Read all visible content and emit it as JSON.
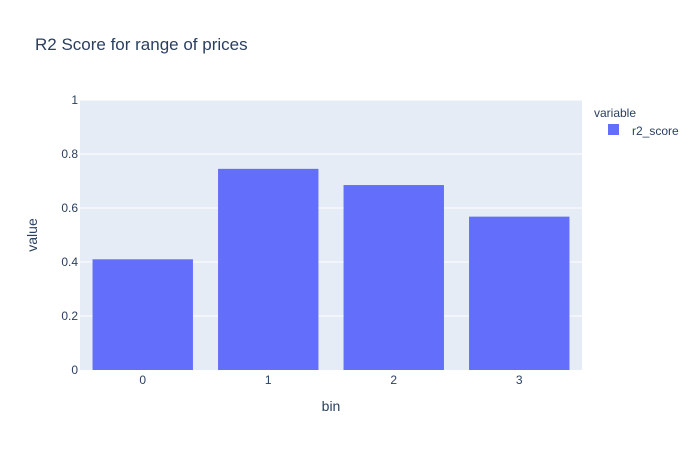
{
  "chart_data": {
    "type": "bar",
    "title": "R2 Score for range of prices",
    "xlabel": "bin",
    "ylabel": "value",
    "categories": [
      "0",
      "1",
      "2",
      "3"
    ],
    "series": [
      {
        "name": "r2_score",
        "values": [
          0.41,
          0.745,
          0.685,
          0.568
        ],
        "color": "#636efa"
      }
    ],
    "ylim": [
      0,
      1
    ],
    "y_ticks": [
      0,
      0.2,
      0.4,
      0.6,
      0.8,
      1
    ],
    "y_tick_labels": [
      "0",
      "0.2",
      "0.4",
      "0.6",
      "0.8",
      "1"
    ],
    "grid": true,
    "legend": {
      "title": "variable",
      "position": "right"
    },
    "colors": {
      "plot_background": "#e5ecf6",
      "grid": "#ffffff",
      "text": "#2a3f5f"
    }
  }
}
